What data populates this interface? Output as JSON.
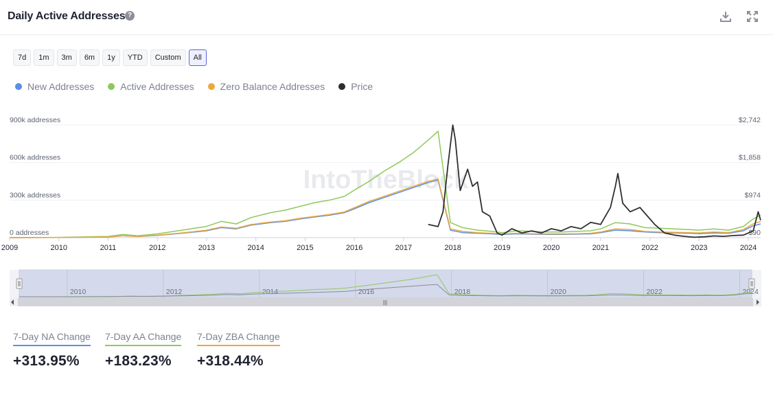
{
  "header": {
    "title": "Daily Active Addresses",
    "help_icon": "question-circle-icon",
    "download_icon": "download-icon",
    "fullscreen_icon": "expand-icon"
  },
  "ranges": [
    "7d",
    "1m",
    "3m",
    "6m",
    "1y",
    "YTD",
    "Custom",
    "All"
  ],
  "active_range": "All",
  "legend": [
    {
      "label": "New Addresses",
      "color": "#5b8ee6"
    },
    {
      "label": "Active Addresses",
      "color": "#8dc95b"
    },
    {
      "label": "Zero Balance Addresses",
      "color": "#eba93a"
    },
    {
      "label": "Price",
      "color": "#2e2e30"
    }
  ],
  "watermark": "IntoTheBlock",
  "navigator": {
    "years": [
      "2010",
      "2012",
      "2014",
      "2016",
      "2018",
      "2020",
      "2022",
      "2024"
    ],
    "scroll_grip": "|||"
  },
  "chart_data": {
    "type": "line",
    "x_ticks": [
      "2009",
      "2010",
      "2011",
      "2012",
      "2013",
      "2014",
      "2015",
      "2016",
      "2017",
      "2018",
      "2019",
      "2020",
      "2021",
      "2022",
      "2023",
      "2024"
    ],
    "y_left_ticks": [
      "0 addresses",
      "300k addresses",
      "600k addresses",
      "900k addresses"
    ],
    "y_left_values": [
      0,
      300000,
      600000,
      900000
    ],
    "y_right_ticks": [
      "$90",
      "$974",
      "$1,858",
      "$2,742"
    ],
    "y_right_values": [
      90,
      974,
      1858,
      2742
    ],
    "series": [
      {
        "name": "Active Addresses",
        "color": "#8dc95b",
        "axis": "left",
        "x": [
          2009.0,
          2010.0,
          2011.0,
          2011.3,
          2011.6,
          2012.0,
          2012.5,
          2013.0,
          2013.3,
          2013.6,
          2013.9,
          2014.0,
          2014.3,
          2014.6,
          2014.9,
          2015.2,
          2015.5,
          2015.8,
          2016.0,
          2016.3,
          2016.6,
          2016.9,
          2017.2,
          2017.5,
          2017.7,
          2017.95,
          2018.2,
          2018.5,
          2018.8,
          2019.0,
          2019.3,
          2019.6,
          2019.9,
          2020.2,
          2020.5,
          2020.8,
          2021.0,
          2021.3,
          2021.6,
          2021.9,
          2022.2,
          2022.5,
          2022.8,
          2023.0,
          2023.3,
          2023.6,
          2023.9,
          2024.1,
          2024.25
        ],
        "y": [
          0,
          2000,
          10000,
          25000,
          15000,
          30000,
          60000,
          90000,
          130000,
          110000,
          160000,
          170000,
          200000,
          220000,
          250000,
          280000,
          300000,
          330000,
          380000,
          450000,
          530000,
          600000,
          680000,
          780000,
          850000,
          120000,
          80000,
          60000,
          50000,
          40000,
          55000,
          50000,
          45000,
          45000,
          50000,
          55000,
          70000,
          120000,
          110000,
          80000,
          75000,
          70000,
          65000,
          60000,
          70000,
          60000,
          90000,
          150000,
          180000
        ]
      },
      {
        "name": "New Addresses",
        "color": "#5b8ee6",
        "axis": "left",
        "x": [
          2009.0,
          2010.0,
          2011.0,
          2011.3,
          2011.6,
          2012.0,
          2012.5,
          2013.0,
          2013.3,
          2013.6,
          2013.9,
          2014.0,
          2014.3,
          2014.6,
          2014.9,
          2015.2,
          2015.5,
          2015.8,
          2016.0,
          2016.3,
          2016.6,
          2016.9,
          2017.2,
          2017.5,
          2017.7,
          2017.95,
          2018.2,
          2018.5,
          2018.8,
          2019.0,
          2019.3,
          2019.6,
          2019.9,
          2020.2,
          2020.5,
          2020.8,
          2021.0,
          2021.3,
          2021.6,
          2021.9,
          2022.2,
          2022.5,
          2022.8,
          2023.0,
          2023.3,
          2023.6,
          2023.9,
          2024.1,
          2024.25
        ],
        "y": [
          0,
          1000,
          5000,
          15000,
          9000,
          18000,
          35000,
          55000,
          80000,
          70000,
          100000,
          105000,
          120000,
          130000,
          150000,
          165000,
          180000,
          200000,
          230000,
          280000,
          320000,
          360000,
          400000,
          440000,
          460000,
          60000,
          40000,
          35000,
          30000,
          25000,
          30000,
          28000,
          26000,
          26000,
          28000,
          30000,
          40000,
          60000,
          55000,
          45000,
          40000,
          38000,
          35000,
          32000,
          38000,
          35000,
          55000,
          95000,
          110000
        ]
      },
      {
        "name": "Zero Balance Addresses",
        "color": "#eba93a",
        "axis": "left",
        "x": [
          2009.0,
          2010.0,
          2011.0,
          2011.3,
          2011.6,
          2012.0,
          2012.5,
          2013.0,
          2013.3,
          2013.6,
          2013.9,
          2014.0,
          2014.3,
          2014.6,
          2014.9,
          2015.2,
          2015.5,
          2015.8,
          2016.0,
          2016.3,
          2016.6,
          2016.9,
          2017.2,
          2017.5,
          2017.7,
          2017.95,
          2018.2,
          2018.5,
          2018.8,
          2019.0,
          2019.3,
          2019.6,
          2019.9,
          2020.2,
          2020.5,
          2020.8,
          2021.0,
          2021.3,
          2021.6,
          2021.9,
          2022.2,
          2022.5,
          2022.8,
          2023.0,
          2023.3,
          2023.6,
          2023.9,
          2024.1,
          2024.25
        ],
        "y": [
          0,
          1000,
          6000,
          16000,
          10000,
          20000,
          38000,
          60000,
          85000,
          75000,
          105000,
          110000,
          125000,
          135000,
          155000,
          170000,
          185000,
          205000,
          240000,
          290000,
          330000,
          370000,
          410000,
          450000,
          470000,
          70000,
          50000,
          40000,
          35000,
          30000,
          35000,
          32000,
          30000,
          30000,
          32000,
          35000,
          45000,
          70000,
          65000,
          50000,
          45000,
          42000,
          40000,
          38000,
          45000,
          40000,
          65000,
          110000,
          130000
        ]
      },
      {
        "name": "Price",
        "color": "#2e2e30",
        "axis": "right",
        "x": [
          2017.5,
          2017.7,
          2017.8,
          2017.9,
          2018.0,
          2018.05,
          2018.15,
          2018.3,
          2018.4,
          2018.5,
          2018.6,
          2018.75,
          2018.9,
          2019.0,
          2019.2,
          2019.4,
          2019.6,
          2019.8,
          2020.0,
          2020.2,
          2020.4,
          2020.6,
          2020.8,
          2021.0,
          2021.2,
          2021.3,
          2021.35,
          2021.45,
          2021.6,
          2021.8,
          2021.95,
          2022.1,
          2022.3,
          2022.5,
          2022.7,
          2022.9,
          2023.1,
          2023.3,
          2023.5,
          2023.7,
          2023.9,
          2024.1,
          2024.2,
          2024.25
        ],
        "y": [
          400,
          350,
          700,
          1800,
          2742,
          2400,
          1200,
          1700,
          1300,
          1400,
          700,
          600,
          200,
          150,
          300,
          200,
          250,
          200,
          300,
          250,
          350,
          300,
          450,
          400,
          800,
          1300,
          1600,
          900,
          700,
          800,
          600,
          400,
          200,
          150,
          120,
          100,
          110,
          130,
          120,
          140,
          150,
          250,
          700,
          500
        ]
      }
    ],
    "xlim": [
      2009.0,
      2024.25
    ],
    "ylim_left": [
      0,
      900000
    ],
    "ylim_right": [
      90,
      2742
    ],
    "legend_position": "top-left",
    "grid": true
  },
  "stats": [
    {
      "label": "7-Day NA Change",
      "value": "+313.95%",
      "color": "#5b8ee6"
    },
    {
      "label": "7-Day AA Change",
      "value": "+183.23%",
      "color": "#8dc95b"
    },
    {
      "label": "7-Day ZBA Change",
      "value": "+318.44%",
      "color": "#eba93a"
    }
  ]
}
